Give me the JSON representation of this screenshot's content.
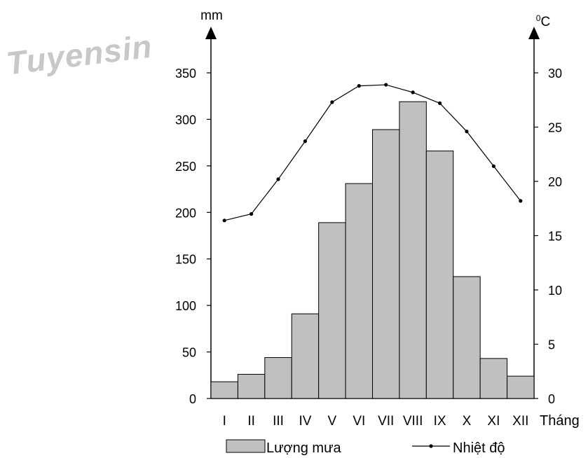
{
  "watermark": "Tuyensin",
  "chart_data": {
    "type": "bar",
    "categories": [
      "I",
      "II",
      "III",
      "IV",
      "V",
      "VI",
      "VII",
      "VIII",
      "IX",
      "X",
      "XI",
      "XII"
    ],
    "series": [
      {
        "name": "Lượng mưa",
        "type": "bar",
        "axis": "left",
        "values": [
          18,
          26,
          44,
          91,
          189,
          231,
          289,
          319,
          266,
          131,
          43,
          24
        ]
      },
      {
        "name": "Nhiệt độ",
        "type": "line",
        "axis": "right",
        "values": [
          16.4,
          17.0,
          20.2,
          23.7,
          27.3,
          28.8,
          28.9,
          28.2,
          27.2,
          24.6,
          21.4,
          18.2
        ]
      }
    ],
    "left_axis": {
      "label": "mm",
      "ylim": [
        0,
        350
      ],
      "ticks": [
        0,
        50,
        100,
        150,
        200,
        250,
        300,
        350
      ]
    },
    "right_axis": {
      "label": "0C",
      "ylim": [
        0,
        30
      ],
      "ticks": [
        0,
        5,
        10,
        15,
        20,
        25,
        30
      ]
    },
    "xlabel": "Tháng",
    "legend_position": "bottom",
    "grid": false,
    "colors": {
      "bar_fill": "#c0c0c0",
      "bar_stroke": "#000000",
      "line": "#000000"
    }
  }
}
